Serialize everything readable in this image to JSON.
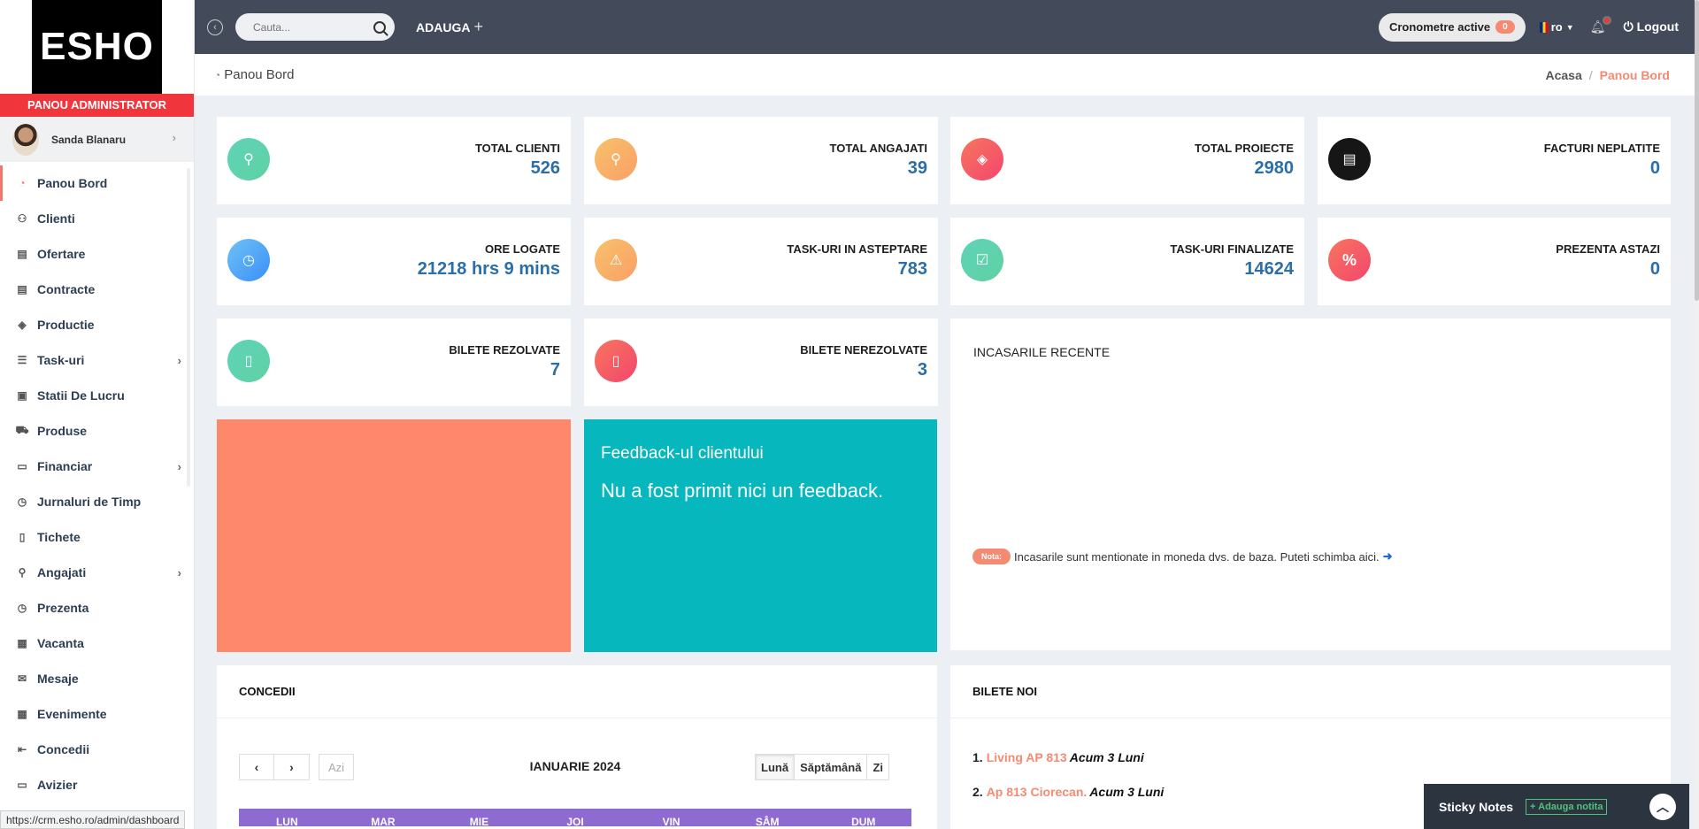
{
  "brand": {
    "logo": "ESHO",
    "panel_title": "PANOU ADMINISTRATOR"
  },
  "user": {
    "name": "Sanda Blanaru"
  },
  "sidebar": {
    "items": [
      {
        "label": "Panou Bord",
        "icon": "dashboard-icon",
        "active": true,
        "has_sub": false
      },
      {
        "label": "Clienti",
        "icon": "users-icon",
        "has_sub": false
      },
      {
        "label": "Ofertare",
        "icon": "document-icon",
        "has_sub": false
      },
      {
        "label": "Contracte",
        "icon": "document-icon",
        "has_sub": false
      },
      {
        "label": "Productie",
        "icon": "layers-icon",
        "has_sub": false
      },
      {
        "label": "Task-uri",
        "icon": "tasks-icon",
        "has_sub": true
      },
      {
        "label": "Statii De Lucru",
        "icon": "workstation-icon",
        "has_sub": false
      },
      {
        "label": "Produse",
        "icon": "cart-icon",
        "has_sub": false
      },
      {
        "label": "Financiar",
        "icon": "money-icon",
        "has_sub": true
      },
      {
        "label": "Jurnaluri de Timp",
        "icon": "clock-icon",
        "has_sub": false
      },
      {
        "label": "Tichete",
        "icon": "ticket-icon",
        "has_sub": false
      },
      {
        "label": "Angajati",
        "icon": "user-icon",
        "has_sub": true
      },
      {
        "label": "Prezenta",
        "icon": "clock-icon",
        "has_sub": false
      },
      {
        "label": "Vacanta",
        "icon": "calendar-icon",
        "has_sub": false
      },
      {
        "label": "Mesaje",
        "icon": "mail-icon",
        "has_sub": false
      },
      {
        "label": "Evenimente",
        "icon": "calendar-grid-icon",
        "has_sub": false
      },
      {
        "label": "Concedii",
        "icon": "logout-arrow-icon",
        "has_sub": false
      },
      {
        "label": "Avizier",
        "icon": "monitor-icon",
        "has_sub": false
      }
    ]
  },
  "topbar": {
    "search_placeholder": "Cauta...",
    "add_label": "ADAUGA",
    "timers_label": "Cronometre active",
    "timers_count": "0",
    "lang": "ro",
    "logout_label": "Logout"
  },
  "page": {
    "title": "Panou Bord",
    "breadcrumb_home": "Acasa",
    "breadcrumb_sep": "/",
    "breadcrumb_current": "Panou Bord"
  },
  "stats": [
    {
      "label": "TOTAL CLIENTI",
      "value": "526",
      "icon": "user-icon",
      "color": "#5fd3b8"
    },
    {
      "label": "TOTAL ANGAJATI",
      "value": "39",
      "icon": "user-icon",
      "color": "#f9a067"
    },
    {
      "label": "TOTAL PROIECTE",
      "value": "2980",
      "icon": "layers-icon",
      "color": "#f3466d"
    },
    {
      "label": "FACTURI NEPLATITE",
      "value": "0",
      "icon": "invoice-icon",
      "color": "#161616"
    },
    {
      "label": "ORE LOGATE",
      "value": "21218 hrs 9 mins",
      "icon": "clock-icon",
      "color": "#3b8ff7"
    },
    {
      "label": "TASK-URI IN ASTEPTARE",
      "value": "783",
      "icon": "warning-icon",
      "color": "#f9a067"
    },
    {
      "label": "TASK-URI FINALIZATE",
      "value": "14624",
      "icon": "check-icon",
      "color": "#5fd3b8"
    },
    {
      "label": "PREZENTA ASTAZI",
      "value": "0",
      "icon": "percent-icon",
      "color": "#f3466d"
    },
    {
      "label": "BILETE REZOLVATE",
      "value": "7",
      "icon": "ticket-icon",
      "color": "#5fd3b8"
    },
    {
      "label": "BILETE NEREZOLVATE",
      "value": "3",
      "icon": "ticket-icon",
      "color": "#f3466d"
    }
  ],
  "feedback": {
    "title": "Feedback-ul clientului",
    "text": "Nu a fost primit nici un feedback."
  },
  "income": {
    "title": "INCASARILE RECENTE",
    "note_badge": "Nota:",
    "note_text": "Incasarile sunt mentionate in moneda dvs. de baza. Puteti schimba aici."
  },
  "leave": {
    "title": "CONCEDII",
    "today_label": "Azi",
    "month_label": "IANUARIE 2024",
    "views": [
      "Lună",
      "Săptămână",
      "Zi"
    ],
    "days": [
      "LUN",
      "MAR",
      "MIE",
      "JOI",
      "VIN",
      "SÂM",
      "DUM"
    ]
  },
  "tickets": {
    "title": "BILETE NOI",
    "items": [
      {
        "num": "1.",
        "name": "Living AP 813",
        "ago": "Acum 3 Luni"
      },
      {
        "num": "2.",
        "name": "Ap 813 Ciorecan.",
        "ago": "Acum 3 Luni"
      }
    ]
  },
  "sticky": {
    "title": "Sticky Notes",
    "add_label": "+ Adauga notita"
  },
  "status_url": "https://crm.esho.ro/admin/dashboard"
}
